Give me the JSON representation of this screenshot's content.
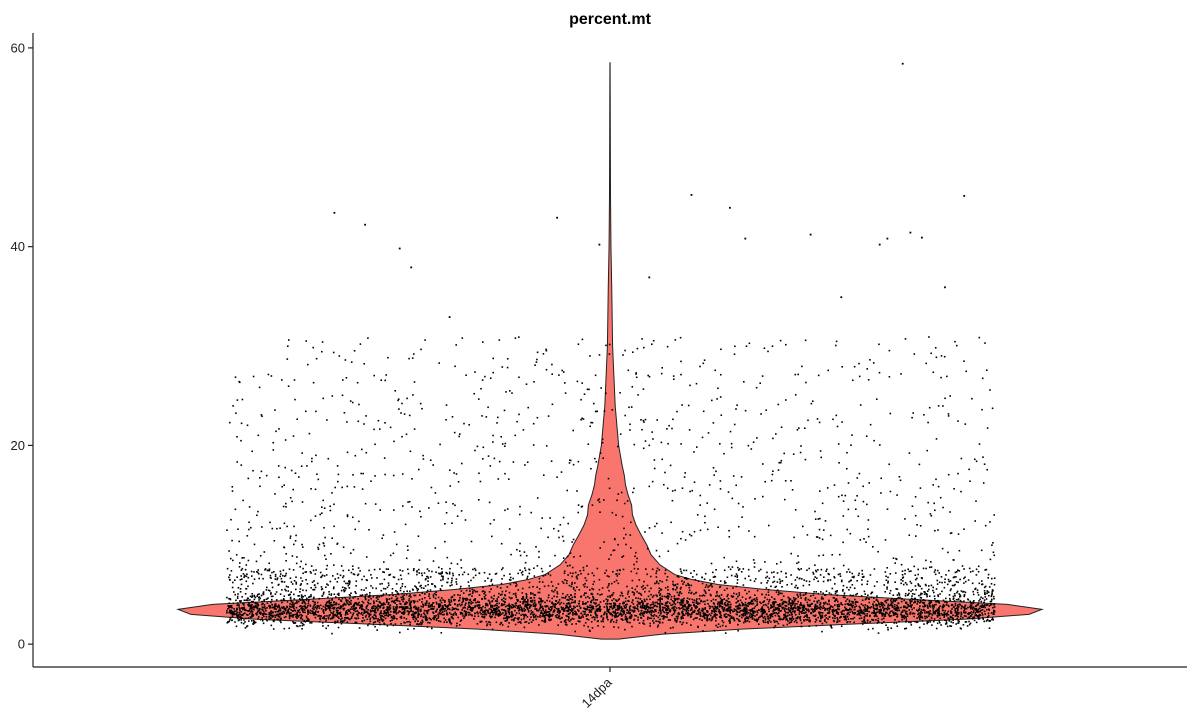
{
  "chart_data": {
    "type": "violin",
    "title": "percent.mt",
    "xlabel": "",
    "ylabel": "",
    "ylim": [
      -2.3,
      61.5
    ],
    "yticks": [
      "0",
      "20",
      "40",
      "60"
    ],
    "categories": [
      "14dpa"
    ],
    "fill_color": "#F8766D",
    "point_color": "#000000",
    "grid": false,
    "legend": "none",
    "violins": [
      {
        "category": "14dpa",
        "min": 0.5,
        "max": 58.5,
        "mode": 3.5,
        "profile": [
          [
            0.5,
            0.02
          ],
          [
            1.0,
            0.12
          ],
          [
            1.5,
            0.3
          ],
          [
            2.0,
            0.55
          ],
          [
            2.5,
            0.82
          ],
          [
            3.0,
            0.97
          ],
          [
            3.5,
            1.0
          ],
          [
            4.0,
            0.92
          ],
          [
            4.5,
            0.7
          ],
          [
            5.0,
            0.5
          ],
          [
            5.5,
            0.36
          ],
          [
            6.0,
            0.25
          ],
          [
            6.5,
            0.19
          ],
          [
            7.0,
            0.15
          ],
          [
            8.0,
            0.115
          ],
          [
            9.0,
            0.095
          ],
          [
            10.0,
            0.085
          ],
          [
            11.0,
            0.072
          ],
          [
            12.0,
            0.06
          ],
          [
            13.0,
            0.052
          ],
          [
            14.0,
            0.05
          ],
          [
            15.0,
            0.042
          ],
          [
            16.0,
            0.036
          ],
          [
            17.0,
            0.033
          ],
          [
            18.0,
            0.028
          ],
          [
            19.0,
            0.024
          ],
          [
            20.0,
            0.02
          ],
          [
            22.0,
            0.016
          ],
          [
            24.0,
            0.012
          ],
          [
            26.0,
            0.01
          ],
          [
            28.0,
            0.008
          ],
          [
            30.0,
            0.006
          ],
          [
            33.0,
            0.005
          ],
          [
            36.0,
            0.004
          ],
          [
            40.0,
            0.0022
          ],
          [
            45.0,
            0.0012
          ],
          [
            50.0,
            0.0008
          ],
          [
            55.0,
            0.0005
          ],
          [
            58.5,
            0.0002
          ]
        ]
      }
    ],
    "points": {
      "count": 6500,
      "mode": 3.5,
      "outliers": [
        [
          -0.72,
          43.5
        ],
        [
          -0.64,
          42.3
        ],
        [
          -0.55,
          39.9
        ],
        [
          -0.52,
          38.0
        ],
        [
          -0.14,
          43.0
        ],
        [
          -0.03,
          40.3
        ],
        [
          0.21,
          45.3
        ],
        [
          0.31,
          44.0
        ],
        [
          0.35,
          40.9
        ],
        [
          0.52,
          41.3
        ],
        [
          0.7,
          40.3
        ],
        [
          0.72,
          40.9
        ],
        [
          0.76,
          58.5
        ],
        [
          0.78,
          41.5
        ],
        [
          0.81,
          41.0
        ],
        [
          0.87,
          36.0
        ],
        [
          0.92,
          45.2
        ],
        [
          0.6,
          35.0
        ],
        [
          -0.42,
          33.0
        ],
        [
          0.1,
          37.0
        ]
      ]
    }
  }
}
